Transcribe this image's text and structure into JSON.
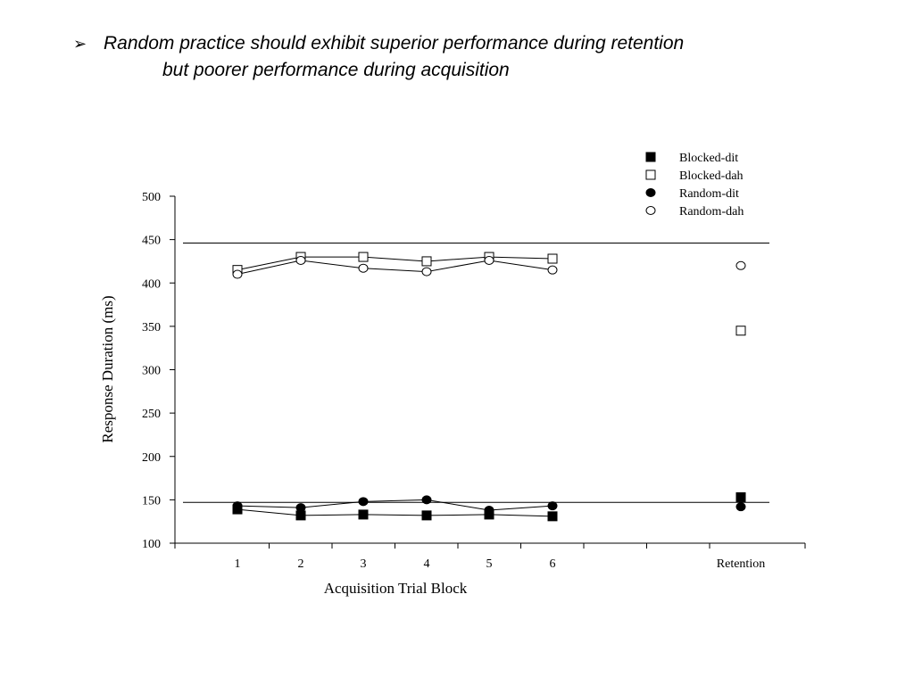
{
  "heading": {
    "bullet": "➢",
    "line1": "Random practice should exhibit superior performance during retention",
    "line2": "but poorer performance during acquisition"
  },
  "chart_data": {
    "type": "scatter",
    "xlabel": "Acquisition Trial Block",
    "ylabel": "Response Duration (ms)",
    "ylim": [
      100,
      500
    ],
    "yticks": [
      100,
      150,
      200,
      250,
      300,
      350,
      400,
      450,
      500
    ],
    "categories": [
      "1",
      "2",
      "3",
      "4",
      "5",
      "6",
      "",
      "",
      "Retention"
    ],
    "reference_lines": [
      446,
      147
    ],
    "legend_position": "top-right",
    "grid": false,
    "series": [
      {
        "name": "Blocked-dit",
        "marker": "square",
        "filled": true,
        "values": [
          139,
          132,
          133,
          132,
          133,
          131
        ],
        "retention": 153
      },
      {
        "name": "Blocked-dah",
        "marker": "square",
        "filled": false,
        "values": [
          415,
          430,
          430,
          425,
          430,
          428
        ],
        "retention": 345
      },
      {
        "name": "Random-dit",
        "marker": "circle",
        "filled": true,
        "values": [
          143,
          141,
          148,
          150,
          138,
          143
        ],
        "retention": 142
      },
      {
        "name": "Random-dah",
        "marker": "circle",
        "filled": false,
        "values": [
          410,
          426,
          417,
          413,
          426,
          415
        ],
        "retention": 420
      }
    ]
  }
}
